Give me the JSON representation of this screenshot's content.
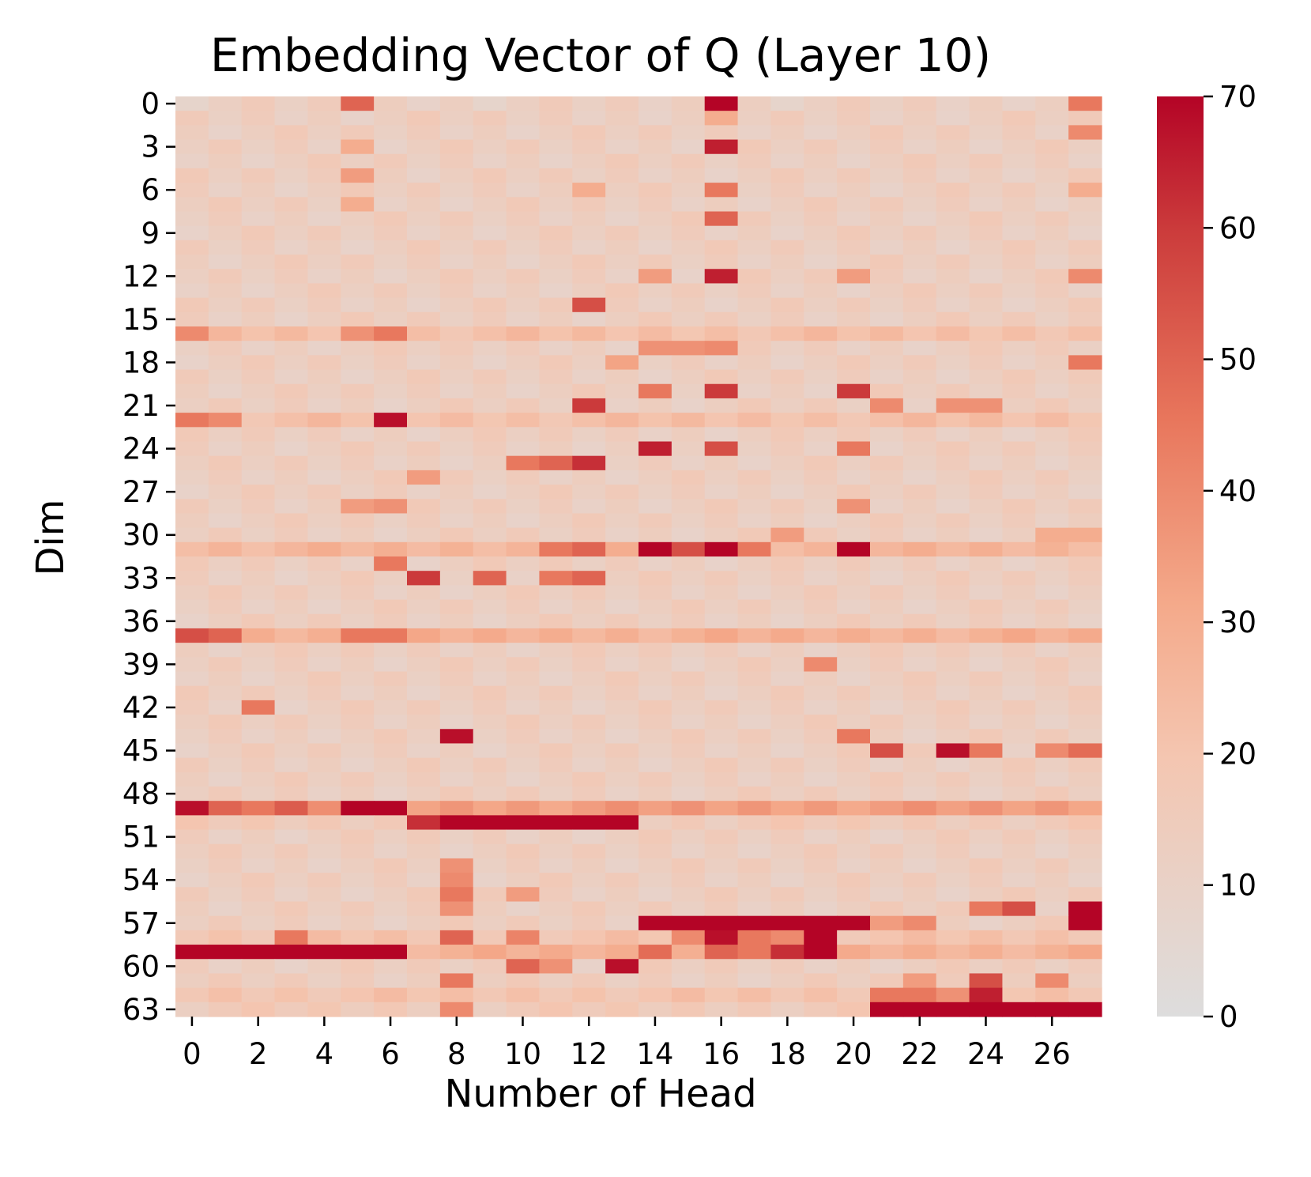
{
  "chart_data": {
    "type": "heatmap",
    "title": "Embedding Vector of Q (Layer 10)",
    "xlabel": "Number of Head",
    "ylabel": "Dim",
    "x_tick_labels": [
      "0",
      "2",
      "4",
      "6",
      "8",
      "10",
      "12",
      "14",
      "16",
      "18",
      "20",
      "22",
      "24",
      "26"
    ],
    "y_tick_labels": [
      "0",
      "3",
      "6",
      "9",
      "12",
      "15",
      "18",
      "21",
      "24",
      "27",
      "30",
      "33",
      "36",
      "39",
      "42",
      "45",
      "48",
      "51",
      "54",
      "57",
      "60",
      "63"
    ],
    "colorbar": {
      "range": [
        0,
        70
      ],
      "tick_labels": [
        "0",
        "10",
        "20",
        "30",
        "40",
        "50",
        "60",
        "70"
      ],
      "colors": {
        "low": "#dddddd",
        "mid": "#f4b49a",
        "high": "#b40426"
      }
    },
    "n_heads": 28,
    "n_dims": 64,
    "base_value": 13,
    "row_defaults": {
      "0": 12,
      "16": 22,
      "22": 22,
      "31": 26,
      "37": 28,
      "49": 35,
      "50": 16,
      "58": 20,
      "59": 28,
      "62": 20,
      "63": 16
    },
    "cells": [
      [
        0,
        5,
        50
      ],
      [
        0,
        16,
        70
      ],
      [
        0,
        27,
        45
      ],
      [
        1,
        16,
        30
      ],
      [
        2,
        27,
        40
      ],
      [
        3,
        16,
        65
      ],
      [
        3,
        5,
        30
      ],
      [
        5,
        5,
        35
      ],
      [
        6,
        16,
        45
      ],
      [
        6,
        12,
        30
      ],
      [
        6,
        27,
        30
      ],
      [
        7,
        5,
        30
      ],
      [
        8,
        16,
        50
      ],
      [
        12,
        16,
        65
      ],
      [
        12,
        14,
        35
      ],
      [
        12,
        20,
        35
      ],
      [
        12,
        27,
        40
      ],
      [
        14,
        12,
        55
      ],
      [
        16,
        0,
        40
      ],
      [
        16,
        5,
        38
      ],
      [
        16,
        6,
        45
      ],
      [
        17,
        14,
        38
      ],
      [
        17,
        15,
        38
      ],
      [
        17,
        16,
        40
      ],
      [
        18,
        27,
        45
      ],
      [
        18,
        13,
        33
      ],
      [
        20,
        14,
        45
      ],
      [
        20,
        16,
        60
      ],
      [
        20,
        20,
        60
      ],
      [
        21,
        12,
        60
      ],
      [
        21,
        21,
        40
      ],
      [
        21,
        23,
        38
      ],
      [
        21,
        24,
        38
      ],
      [
        22,
        0,
        45
      ],
      [
        22,
        1,
        40
      ],
      [
        22,
        6,
        68
      ],
      [
        24,
        14,
        65
      ],
      [
        24,
        16,
        55
      ],
      [
        24,
        20,
        45
      ],
      [
        25,
        11,
        50
      ],
      [
        25,
        12,
        62
      ],
      [
        25,
        10,
        45
      ],
      [
        26,
        7,
        35
      ],
      [
        28,
        5,
        35
      ],
      [
        28,
        6,
        38
      ],
      [
        28,
        20,
        38
      ],
      [
        30,
        18,
        35
      ],
      [
        30,
        26,
        30
      ],
      [
        30,
        27,
        30
      ],
      [
        31,
        14,
        70
      ],
      [
        31,
        15,
        55
      ],
      [
        31,
        16,
        70
      ],
      [
        31,
        20,
        70
      ],
      [
        31,
        12,
        50
      ],
      [
        31,
        11,
        45
      ],
      [
        31,
        17,
        45
      ],
      [
        32,
        6,
        45
      ],
      [
        33,
        7,
        60
      ],
      [
        33,
        9,
        50
      ],
      [
        33,
        11,
        45
      ],
      [
        33,
        12,
        50
      ],
      [
        37,
        0,
        55
      ],
      [
        37,
        1,
        50
      ],
      [
        37,
        5,
        45
      ],
      [
        37,
        6,
        45
      ],
      [
        39,
        19,
        40
      ],
      [
        42,
        2,
        45
      ],
      [
        44,
        8,
        68
      ],
      [
        44,
        20,
        45
      ],
      [
        45,
        21,
        55
      ],
      [
        45,
        23,
        68
      ],
      [
        45,
        24,
        45
      ],
      [
        45,
        27,
        48
      ],
      [
        45,
        26,
        40
      ],
      [
        49,
        0,
        68
      ],
      [
        49,
        1,
        50
      ],
      [
        49,
        2,
        45
      ],
      [
        49,
        3,
        52
      ],
      [
        49,
        5,
        70
      ],
      [
        49,
        6,
        70
      ],
      [
        50,
        7,
        62
      ],
      [
        50,
        8,
        70
      ],
      [
        50,
        9,
        70
      ],
      [
        50,
        10,
        70
      ],
      [
        50,
        11,
        70
      ],
      [
        50,
        12,
        70
      ],
      [
        50,
        13,
        70
      ],
      [
        53,
        8,
        38
      ],
      [
        54,
        8,
        40
      ],
      [
        55,
        8,
        45
      ],
      [
        55,
        10,
        35
      ],
      [
        56,
        8,
        38
      ],
      [
        56,
        24,
        45
      ],
      [
        56,
        25,
        55
      ],
      [
        56,
        27,
        70
      ],
      [
        57,
        14,
        70
      ],
      [
        57,
        15,
        70
      ],
      [
        57,
        16,
        70
      ],
      [
        57,
        17,
        70
      ],
      [
        57,
        18,
        70
      ],
      [
        57,
        19,
        70
      ],
      [
        57,
        20,
        70
      ],
      [
        57,
        22,
        40
      ],
      [
        57,
        21,
        35
      ],
      [
        57,
        27,
        70
      ],
      [
        58,
        16,
        68
      ],
      [
        58,
        19,
        70
      ],
      [
        58,
        17,
        45
      ],
      [
        58,
        18,
        40
      ],
      [
        58,
        15,
        40
      ],
      [
        58,
        3,
        45
      ],
      [
        58,
        8,
        50
      ],
      [
        58,
        10,
        42
      ],
      [
        59,
        0,
        70
      ],
      [
        59,
        1,
        70
      ],
      [
        59,
        2,
        70
      ],
      [
        59,
        3,
        70
      ],
      [
        59,
        4,
        70
      ],
      [
        59,
        5,
        70
      ],
      [
        59,
        6,
        70
      ],
      [
        59,
        14,
        48
      ],
      [
        59,
        16,
        50
      ],
      [
        59,
        18,
        62
      ],
      [
        59,
        19,
        70
      ],
      [
        59,
        17,
        45
      ],
      [
        60,
        13,
        68
      ],
      [
        60,
        10,
        50
      ],
      [
        60,
        11,
        38
      ],
      [
        61,
        8,
        45
      ],
      [
        61,
        24,
        55
      ],
      [
        61,
        26,
        40
      ],
      [
        61,
        22,
        35
      ],
      [
        62,
        24,
        65
      ],
      [
        62,
        21,
        45
      ],
      [
        62,
        22,
        45
      ],
      [
        62,
        23,
        38
      ],
      [
        63,
        21,
        70
      ],
      [
        63,
        22,
        70
      ],
      [
        63,
        23,
        70
      ],
      [
        63,
        24,
        70
      ],
      [
        63,
        25,
        70
      ],
      [
        63,
        26,
        70
      ],
      [
        63,
        27,
        70
      ],
      [
        63,
        8,
        40
      ]
    ]
  }
}
